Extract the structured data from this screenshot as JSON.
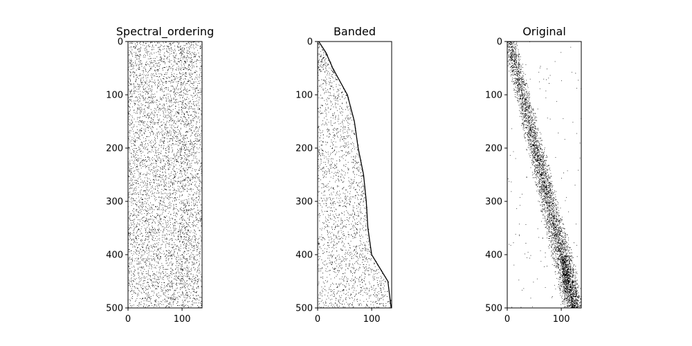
{
  "figure": {
    "background": "#ffffff",
    "colormap": "binary"
  },
  "chart_data": [
    {
      "type": "heatmap",
      "title": "Spectral_ordering",
      "xlabel": "",
      "ylabel": "",
      "xlim": [
        0,
        137
      ],
      "ylim": [
        500,
        0
      ],
      "xticks": [
        0,
        100
      ],
      "yticks": [
        0,
        100,
        200,
        300,
        400,
        500
      ],
      "pattern": "scattered",
      "density": 0.07,
      "seed": 11
    },
    {
      "type": "heatmap",
      "title": "Banded",
      "xlabel": "",
      "ylabel": "",
      "xlim": [
        0,
        137
      ],
      "ylim": [
        500,
        0
      ],
      "xticks": [
        0,
        100
      ],
      "yticks": [
        0,
        100,
        200,
        300,
        400,
        500
      ],
      "pattern": "banded",
      "density": 0.05,
      "seed": 23,
      "boundary_curve": [
        [
          0,
          2
        ],
        [
          20,
          15
        ],
        [
          50,
          28
        ],
        [
          100,
          55
        ],
        [
          150,
          68
        ],
        [
          200,
          75
        ],
        [
          250,
          85
        ],
        [
          300,
          90
        ],
        [
          350,
          93
        ],
        [
          400,
          100
        ],
        [
          450,
          130
        ],
        [
          500,
          136
        ]
      ]
    },
    {
      "type": "heatmap",
      "title": "Original",
      "xlabel": "",
      "ylabel": "",
      "xlim": [
        0,
        137
      ],
      "ylim": [
        500,
        0
      ],
      "xticks": [
        0,
        100
      ],
      "yticks": [
        0,
        100,
        200,
        300,
        400,
        500
      ],
      "pattern": "diagonal",
      "density": 0.28,
      "seed": 37
    }
  ]
}
